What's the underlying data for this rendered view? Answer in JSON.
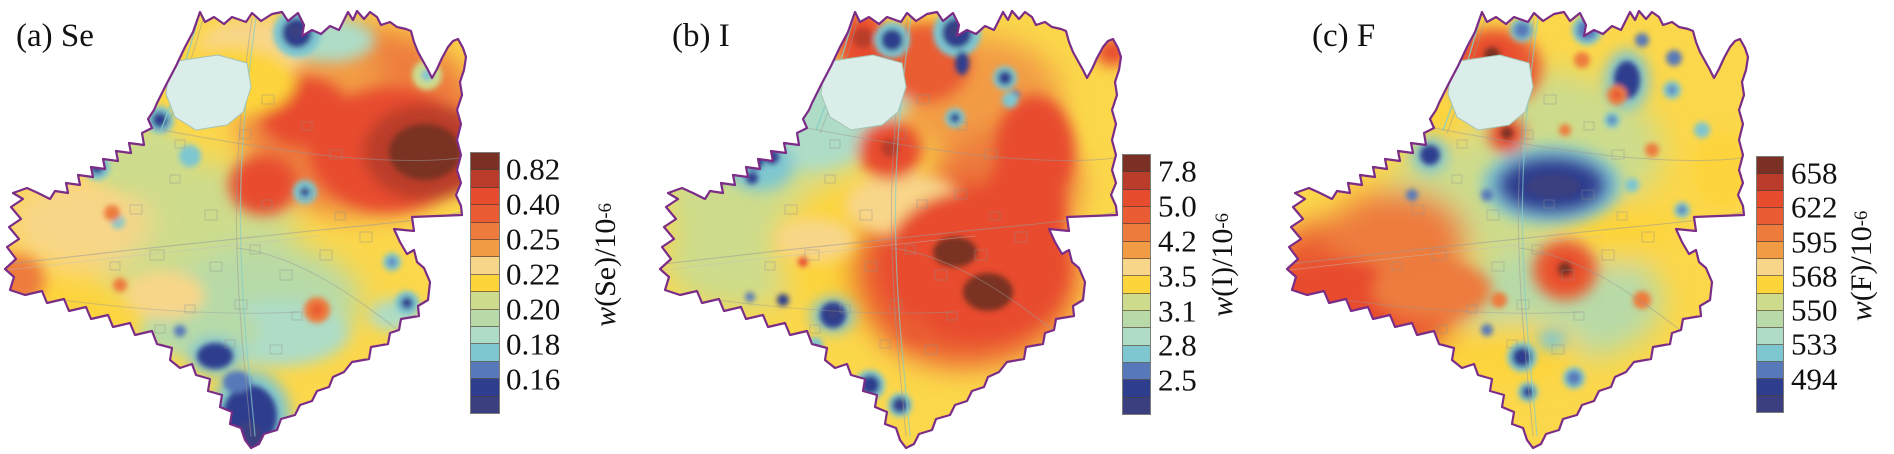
{
  "figure": {
    "description": "Spatial distribution contour maps of Se, I and F concentrations over the same county region",
    "background": "#FFFFFF"
  },
  "palette": [
    "#7A3024",
    "#BA3D2B",
    "#E84C2E",
    "#EA5C33",
    "#ED7C3C",
    "#F29B45",
    "#F8D689",
    "#FDD43A",
    "#CDDC8C",
    "#B7DAA8",
    "#AEDCC6",
    "#7EC6D0",
    "#5879B9",
    "#2E3D8E",
    "#3B3F80"
  ],
  "colors": {
    "outline": "#7B2C86",
    "interior_lines": "#9A9A9A",
    "water_lines": "#86CDC7",
    "lake_fill": "#DBEDE8",
    "base_fill": "#FBD74B"
  },
  "panels": [
    {
      "id": "a",
      "title": "(a) Se",
      "element": "Se",
      "colorbar": {
        "ticks": [
          "0.82",
          "0.40",
          "0.25",
          "0.22",
          "0.20",
          "0.18",
          "0.16"
        ],
        "label": {
          "symbol": "w",
          "element": "(Se)",
          "separator": " / ",
          "base": "10",
          "exponent": "-6"
        }
      }
    },
    {
      "id": "b",
      "title": "(b) I",
      "element": "I",
      "colorbar": {
        "ticks": [
          "7.8",
          "5.0",
          "4.2",
          "3.5",
          "3.1",
          "2.8",
          "2.5"
        ],
        "label": {
          "symbol": "w",
          "element": "(I)",
          "separator": " / ",
          "base": "10",
          "exponent": "-6"
        }
      }
    },
    {
      "id": "c",
      "title": "(c) F",
      "element": "F",
      "colorbar": {
        "ticks": [
          "658",
          "622",
          "595",
          "568",
          "550",
          "533",
          "494"
        ],
        "label": {
          "symbol": "w",
          "element": "(F)",
          "separator": " / ",
          "base": "10",
          "exponent": "-6"
        }
      }
    }
  ],
  "chart_data": [
    {
      "type": "contour-map",
      "panel": "(a) Se",
      "variable": "w(Se)/10^-6",
      "scale_breaks": [
        0.16,
        0.18,
        0.2,
        0.22,
        0.25,
        0.4,
        0.82
      ],
      "classes": 15,
      "legend_position": "right"
    },
    {
      "type": "contour-map",
      "panel": "(b) I",
      "variable": "w(I)/10^-6",
      "scale_breaks": [
        2.5,
        2.8,
        3.1,
        3.5,
        4.2,
        5.0,
        7.8
      ],
      "classes": 15,
      "legend_position": "right"
    },
    {
      "type": "contour-map",
      "panel": "(c) F",
      "variable": "w(F)/10^-6",
      "scale_breaks": [
        494,
        533,
        550,
        568,
        595,
        622,
        658
      ],
      "classes": 15,
      "legend_position": "right"
    }
  ]
}
